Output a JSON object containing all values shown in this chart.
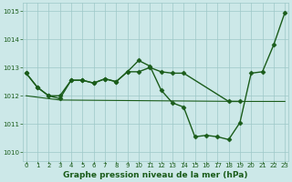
{
  "title": "Graphe pression niveau de la mer (hPa)",
  "line_zigzag": {
    "x": [
      0,
      1,
      2,
      3,
      4,
      5,
      6,
      7,
      8,
      9,
      10,
      11,
      12,
      13,
      14,
      15,
      16,
      17,
      18,
      19,
      20,
      21,
      22,
      23
    ],
    "y": [
      1012.8,
      1012.3,
      1012.0,
      1011.9,
      1012.55,
      1012.55,
      1012.45,
      1012.6,
      1012.5,
      1012.85,
      1013.25,
      1013.05,
      1012.2,
      1011.75,
      1011.6,
      1010.55,
      1010.6,
      1010.55,
      1010.45,
      1011.05,
      1012.8,
      1012.85,
      1013.8,
      1014.95
    ],
    "color": "#1a5c1a",
    "linewidth": 1.0,
    "marker": "D",
    "markersize": 2.5
  },
  "line_upper": {
    "x": [
      0,
      1,
      2,
      3,
      4,
      5,
      6,
      7,
      8,
      9,
      10,
      11,
      12,
      13,
      14,
      18,
      19
    ],
    "y": [
      1012.8,
      1012.3,
      1012.0,
      1012.0,
      1012.55,
      1012.55,
      1012.45,
      1012.6,
      1012.5,
      1012.85,
      1012.85,
      1013.0,
      1012.85,
      1012.8,
      1012.8,
      1011.8,
      1011.8
    ],
    "color": "#1a5c1a",
    "linewidth": 1.0,
    "marker": "D",
    "markersize": 2.5
  },
  "line_diagonal": {
    "x": [
      0,
      3,
      19,
      23
    ],
    "y": [
      1012.0,
      1011.85,
      1011.8,
      1011.8
    ],
    "color": "#1a5c1a",
    "linewidth": 0.8,
    "marker": null,
    "markersize": 0
  },
  "ylim": [
    1009.7,
    1015.3
  ],
  "xlim": [
    -0.3,
    23.3
  ],
  "yticks": [
    1010,
    1011,
    1012,
    1013,
    1014,
    1015
  ],
  "xticks": [
    0,
    1,
    2,
    3,
    4,
    5,
    6,
    7,
    8,
    9,
    10,
    11,
    12,
    13,
    14,
    15,
    16,
    17,
    18,
    19,
    20,
    21,
    22,
    23
  ],
  "background_color": "#cce8e8",
  "grid_color": "#9dc8c8",
  "line_color": "#1a5c1a",
  "label_color": "#1a5c1a",
  "title_color": "#1a5c1a",
  "title_fontsize": 6.5,
  "tick_fontsize": 5.0
}
